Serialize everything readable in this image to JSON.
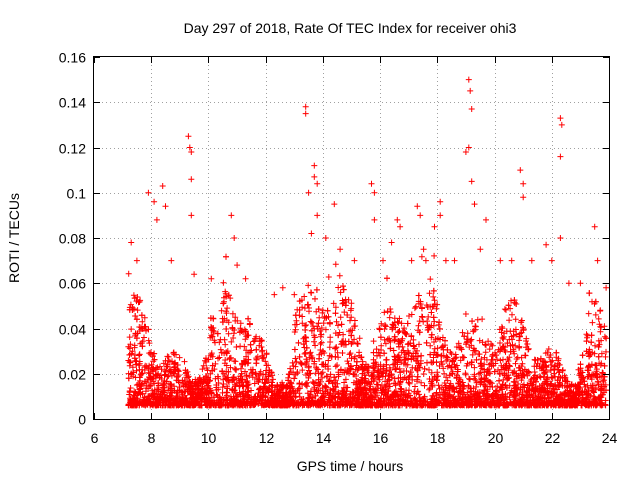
{
  "chart_data": {
    "type": "scatter",
    "title": "Day 297 of 2018, Rate Of TEC Index for receiver ohi3",
    "xlabel": "GPS time / hours",
    "ylabel": "ROTI / TECUs",
    "xlim": [
      6,
      24
    ],
    "ylim": [
      0,
      0.16
    ],
    "x_ticks": [
      6,
      8,
      10,
      12,
      14,
      16,
      18,
      20,
      22,
      24
    ],
    "x_tick_labels": [
      "6",
      "8",
      "10",
      "12",
      "14",
      "16",
      "18",
      "20",
      "22",
      "24"
    ],
    "y_ticks": [
      0,
      0.02,
      0.04,
      0.06,
      0.08,
      0.1,
      0.12,
      0.14,
      0.16
    ],
    "y_tick_labels": [
      "0",
      "0.02",
      "0.04",
      "0.06",
      "0.08",
      "0.1",
      "0.12",
      "0.14",
      "0.16"
    ],
    "grid": true,
    "marker": "plus",
    "color": "#ff0000",
    "series": [
      {
        "name": "ROTI",
        "x_range": [
          7.2,
          23.9
        ],
        "typical_range": [
          0.005,
          0.04
        ],
        "notable_points": [
          {
            "x": 7.3,
            "y": 0.078
          },
          {
            "x": 7.5,
            "y": 0.07
          },
          {
            "x": 7.9,
            "y": 0.1
          },
          {
            "x": 8.1,
            "y": 0.096
          },
          {
            "x": 8.2,
            "y": 0.088
          },
          {
            "x": 8.4,
            "y": 0.103
          },
          {
            "x": 8.5,
            "y": 0.094
          },
          {
            "x": 8.7,
            "y": 0.07
          },
          {
            "x": 9.3,
            "y": 0.125
          },
          {
            "x": 9.35,
            "y": 0.12
          },
          {
            "x": 9.4,
            "y": 0.118
          },
          {
            "x": 9.4,
            "y": 0.106
          },
          {
            "x": 9.4,
            "y": 0.09
          },
          {
            "x": 9.5,
            "y": 0.064
          },
          {
            "x": 10.1,
            "y": 0.062
          },
          {
            "x": 10.8,
            "y": 0.09
          },
          {
            "x": 10.9,
            "y": 0.08
          },
          {
            "x": 11.0,
            "y": 0.068
          },
          {
            "x": 11.3,
            "y": 0.062
          },
          {
            "x": 12.3,
            "y": 0.055
          },
          {
            "x": 12.6,
            "y": 0.058
          },
          {
            "x": 13.0,
            "y": 0.055
          },
          {
            "x": 13.4,
            "y": 0.138
          },
          {
            "x": 13.4,
            "y": 0.135
          },
          {
            "x": 13.5,
            "y": 0.1
          },
          {
            "x": 13.7,
            "y": 0.112
          },
          {
            "x": 13.7,
            "y": 0.107
          },
          {
            "x": 13.8,
            "y": 0.104
          },
          {
            "x": 13.8,
            "y": 0.09
          },
          {
            "x": 13.6,
            "y": 0.082
          },
          {
            "x": 14.1,
            "y": 0.08
          },
          {
            "x": 14.4,
            "y": 0.095
          },
          {
            "x": 14.6,
            "y": 0.075
          },
          {
            "x": 15.1,
            "y": 0.07
          },
          {
            "x": 15.7,
            "y": 0.104
          },
          {
            "x": 15.8,
            "y": 0.1
          },
          {
            "x": 15.8,
            "y": 0.088
          },
          {
            "x": 16.1,
            "y": 0.07
          },
          {
            "x": 16.4,
            "y": 0.078
          },
          {
            "x": 16.6,
            "y": 0.088
          },
          {
            "x": 16.7,
            "y": 0.085
          },
          {
            "x": 17.1,
            "y": 0.07
          },
          {
            "x": 17.3,
            "y": 0.094
          },
          {
            "x": 17.4,
            "y": 0.09
          },
          {
            "x": 17.6,
            "y": 0.07
          },
          {
            "x": 17.9,
            "y": 0.085
          },
          {
            "x": 18.1,
            "y": 0.096
          },
          {
            "x": 18.1,
            "y": 0.09
          },
          {
            "x": 18.3,
            "y": 0.07
          },
          {
            "x": 18.6,
            "y": 0.07
          },
          {
            "x": 19.0,
            "y": 0.118
          },
          {
            "x": 19.1,
            "y": 0.15
          },
          {
            "x": 19.15,
            "y": 0.145
          },
          {
            "x": 19.2,
            "y": 0.137
          },
          {
            "x": 19.1,
            "y": 0.12
          },
          {
            "x": 19.2,
            "y": 0.105
          },
          {
            "x": 19.3,
            "y": 0.095
          },
          {
            "x": 19.5,
            "y": 0.075
          },
          {
            "x": 19.7,
            "y": 0.088
          },
          {
            "x": 20.2,
            "y": 0.07
          },
          {
            "x": 20.6,
            "y": 0.07
          },
          {
            "x": 20.9,
            "y": 0.11
          },
          {
            "x": 21.0,
            "y": 0.104
          },
          {
            "x": 21.0,
            "y": 0.098
          },
          {
            "x": 21.3,
            "y": 0.07
          },
          {
            "x": 21.8,
            "y": 0.077
          },
          {
            "x": 22.0,
            "y": 0.07
          },
          {
            "x": 22.3,
            "y": 0.133
          },
          {
            "x": 22.35,
            "y": 0.13
          },
          {
            "x": 22.3,
            "y": 0.116
          },
          {
            "x": 22.3,
            "y": 0.08
          },
          {
            "x": 22.6,
            "y": 0.06
          },
          {
            "x": 23.0,
            "y": 0.06
          },
          {
            "x": 23.5,
            "y": 0.085
          },
          {
            "x": 23.6,
            "y": 0.07
          },
          {
            "x": 23.9,
            "y": 0.058
          }
        ]
      }
    ]
  }
}
